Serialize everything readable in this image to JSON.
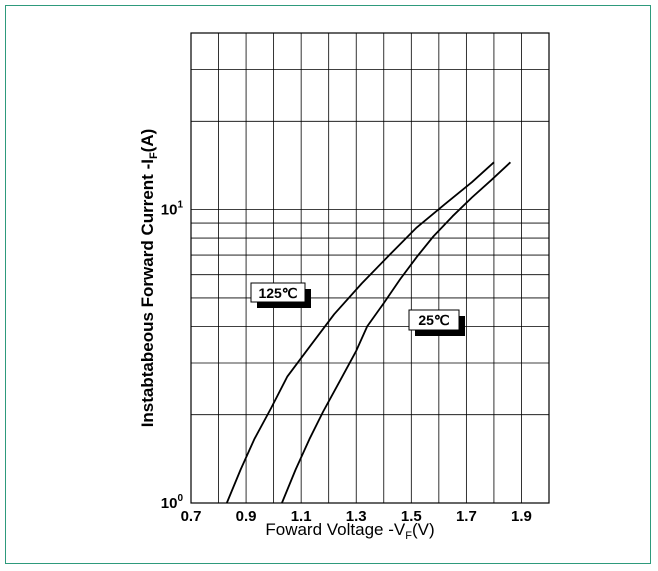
{
  "chart_data": {
    "type": "line",
    "title": "",
    "xlabel": {
      "main": "Foward Voltage -V",
      "sub": "F",
      "unit": "(V)"
    },
    "ylabel": {
      "main": "Instabtabeous Forward Current -I",
      "sub": "F",
      "unit": "(A)"
    },
    "xlim": [
      0.7,
      2.0
    ],
    "ylim": [
      1,
      40
    ],
    "yscale": "log",
    "grid": true,
    "x_tick_labels": [
      "0.7",
      "0.9",
      "1.1",
      "1.3",
      "1.5",
      "1.7",
      "1.9"
    ],
    "y_tick_labels": [
      {
        "base": "10",
        "exp": "0"
      },
      {
        "base": "10",
        "exp": "1"
      }
    ],
    "series": [
      {
        "name": "125℃",
        "color": "#000000",
        "x": [
          0.83,
          0.88,
          0.93,
          0.99,
          1.05,
          1.13,
          1.22,
          1.32,
          1.42,
          1.52,
          1.62,
          1.72,
          1.8
        ],
        "y": [
          1.0,
          1.3,
          1.65,
          2.1,
          2.7,
          3.4,
          4.4,
          5.6,
          7.0,
          8.7,
          10.4,
          12.4,
          14.5
        ]
      },
      {
        "name": "25℃",
        "color": "#000000",
        "x": [
          1.03,
          1.08,
          1.13,
          1.18,
          1.24,
          1.3,
          1.34,
          1.4,
          1.46,
          1.52,
          1.58,
          1.65,
          1.72,
          1.79,
          1.86
        ],
        "y": [
          1.0,
          1.3,
          1.65,
          2.05,
          2.6,
          3.3,
          4.0,
          4.8,
          5.8,
          6.9,
          8.1,
          9.5,
          11.0,
          12.6,
          14.5
        ]
      }
    ]
  }
}
